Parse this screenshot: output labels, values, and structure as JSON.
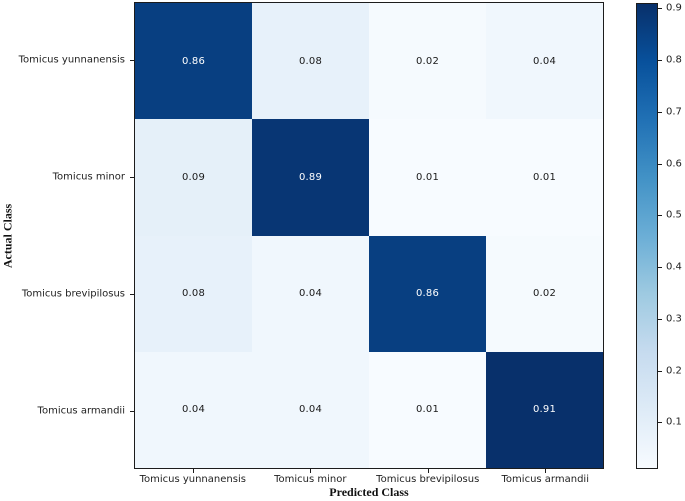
{
  "chart_data": {
    "type": "heatmap",
    "title": "",
    "xlabel": "Predicted Class",
    "ylabel": "Actual Class",
    "categories": [
      "Tomicus yunnanensis",
      "Tomicus minor",
      "Tomicus brevipilosus",
      "Tomicus armandii"
    ],
    "rows": [
      "Tomicus yunnanensis",
      "Tomicus minor",
      "Tomicus brevipilosus",
      "Tomicus armandii"
    ],
    "matrix": [
      [
        0.86,
        0.08,
        0.02,
        0.04
      ],
      [
        0.09,
        0.89,
        0.01,
        0.01
      ],
      [
        0.08,
        0.04,
        0.86,
        0.02
      ],
      [
        0.04,
        0.04,
        0.01,
        0.91
      ]
    ],
    "value_format": "2dp",
    "colormap": "Blues",
    "vmin": 0.01,
    "vmax": 0.91,
    "colorbar_ticks": [
      0.1,
      0.2,
      0.3,
      0.4,
      0.5,
      0.6,
      0.7,
      0.8,
      0.9
    ],
    "colorbar_position": "right",
    "grid": false
  },
  "colors": {
    "cmap_stops": [
      "#f7fbff",
      "#deebf7",
      "#c6dbef",
      "#9ecae1",
      "#6baed6",
      "#4292c6",
      "#2171b5",
      "#08519c",
      "#08306b"
    ],
    "cell_text_dark": "#1a1a1a",
    "cell_text_light": "#ffffff",
    "spine": "#1c1c1c",
    "background": "#ffffff"
  }
}
